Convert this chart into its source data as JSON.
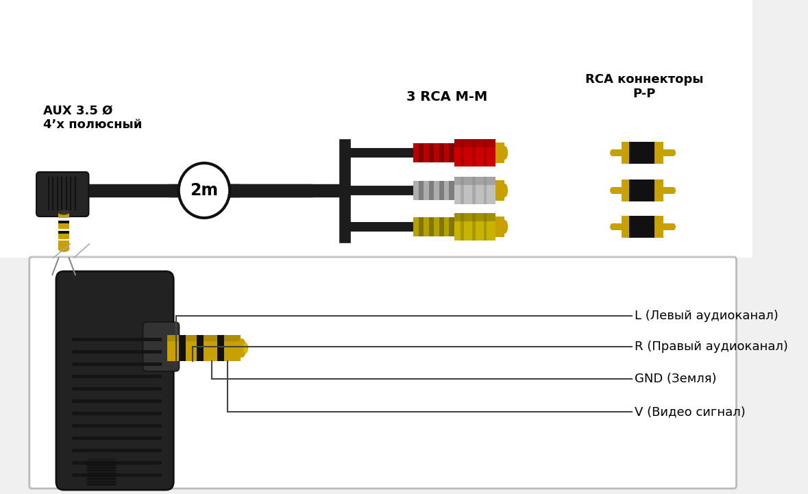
{
  "bg_color": "#f0f0f0",
  "text_aux_label": "AUX 3.5 Ø\n4’х полюсный",
  "text_2m": "2m",
  "text_3rca": "3 RCA M-M",
  "text_rca_conn": "RCA коннекторы\nP-P",
  "label_L": "L (Левый аудиоканал)",
  "label_R": "R (Правый аудиоканал)",
  "label_GND": "GND (Земля)",
  "label_V": "V (Видео сигнал)",
  "rca_colors": [
    "#c8b400",
    "#c0c0c0",
    "#cc0000"
  ],
  "rca_dark_colors": [
    "#7a6e00",
    "#888888",
    "#880000"
  ],
  "gold_color": "#c8a000",
  "gold_dark": "#8a6e00",
  "dark_color": "#1a1a1a",
  "line_color": "#111111",
  "box_border": "#999999",
  "white": "#ffffff",
  "top_bg": "#ffffff",
  "bottom_bg": "#ffffff"
}
